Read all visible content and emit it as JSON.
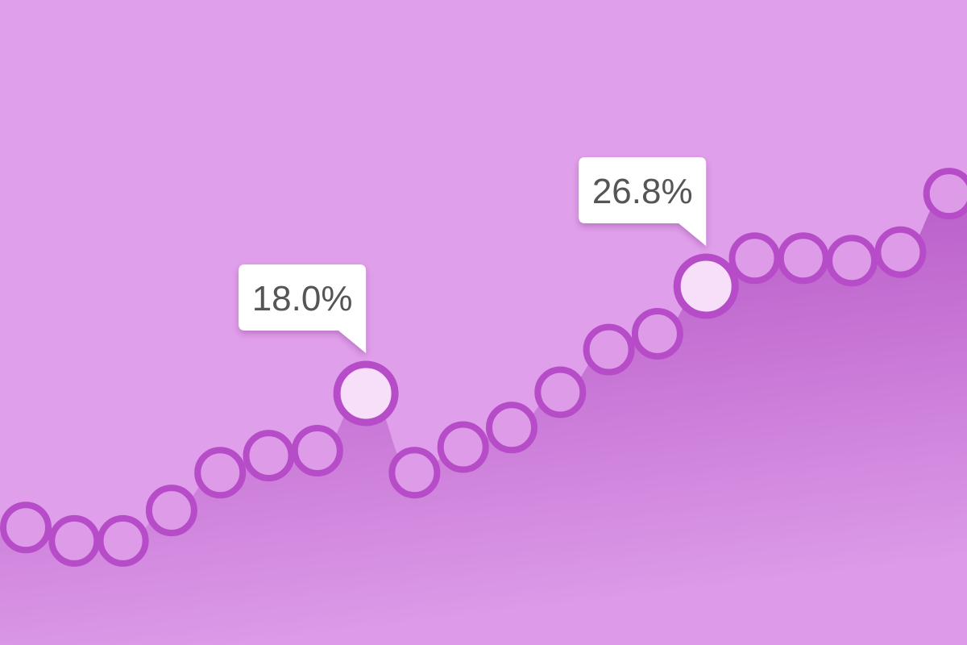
{
  "chart_data": {
    "type": "area",
    "x": [
      1,
      2,
      3,
      4,
      5,
      6,
      7,
      8,
      9,
      10,
      11,
      12,
      13,
      14,
      15,
      16,
      17,
      18,
      19,
      20
    ],
    "values": [
      7.0,
      5.9,
      5.9,
      8.4,
      11.5,
      12.9,
      13.3,
      18.0,
      11.5,
      13.6,
      15.2,
      18.1,
      21.6,
      22.9,
      26.8,
      29.1,
      29.1,
      28.9,
      29.6,
      34.4
    ],
    "ylim": [
      0,
      45
    ],
    "grid": false,
    "highlights": [
      {
        "index": 8,
        "label": "18.0%"
      },
      {
        "index": 15,
        "label": "26.8%"
      }
    ]
  },
  "colors": {
    "background": "#e09fea",
    "area_top": "#b04cc0",
    "area_bottom": "#dc9ae8",
    "marker_fill": "#dd9be8",
    "marker_stroke": "#b74cc8",
    "highlight_fill": "#f7def9",
    "callout_bg": "#ffffff",
    "callout_text": "#555555"
  }
}
